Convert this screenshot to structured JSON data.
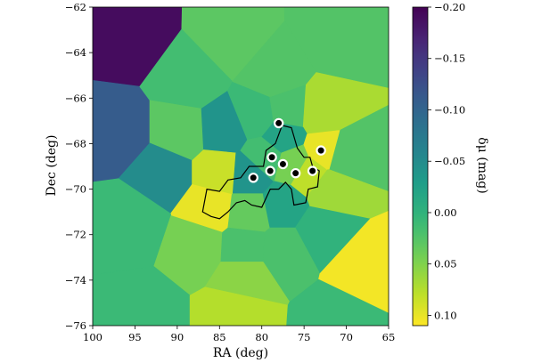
{
  "chart_data": {
    "type": "heatmap",
    "title": "",
    "xlabel": "RA (deg)",
    "ylabel": "Dec (deg)",
    "xlim": [
      100,
      65
    ],
    "ylim": [
      -76,
      -62
    ],
    "x_ticks": [
      100,
      95,
      90,
      85,
      80,
      75,
      70,
      65
    ],
    "x_tick_labels": [
      "100",
      "95",
      "90",
      "85",
      "80",
      "75",
      "70",
      "65"
    ],
    "y_ticks": [
      -76,
      -74,
      -72,
      -70,
      -68,
      -66,
      -64,
      -62
    ],
    "y_tick_labels": [
      "−76",
      "−74",
      "−72",
      "−70",
      "−68",
      "−66",
      "−64",
      "−62"
    ],
    "colorbar": {
      "label": "δμ (mag)",
      "colormap": "viridis",
      "reversed": true,
      "range": [
        -0.2,
        0.11
      ],
      "ticks": [
        -0.2,
        -0.15,
        -0.1,
        -0.05,
        0.0,
        0.05,
        0.1
      ],
      "tick_labels": [
        "−0.20",
        "−0.15",
        "−0.10",
        "−0.05",
        "0.00",
        "0.05",
        "0.10"
      ]
    },
    "cells": [
      {
        "ra": 95.5,
        "dec": -63.3,
        "value": -0.19
      },
      {
        "ra": 83.5,
        "dec": -63.4,
        "value": 0.03
      },
      {
        "ra": 71.0,
        "dec": -63.3,
        "value": 0.025
      },
      {
        "ra": 97.0,
        "dec": -67.5,
        "value": -0.11
      },
      {
        "ra": 88.5,
        "dec": -65.2,
        "value": 0.015
      },
      {
        "ra": 78.5,
        "dec": -65.0,
        "value": 0.025
      },
      {
        "ra": 89.5,
        "dec": -67.5,
        "value": 0.03
      },
      {
        "ra": 84.5,
        "dec": -67.4,
        "value": -0.04
      },
      {
        "ra": 80.5,
        "dec": -66.8,
        "value": 0.01
      },
      {
        "ra": 77.0,
        "dec": -66.6,
        "value": 0.02
      },
      {
        "ra": 73.0,
        "dec": -66.7,
        "value": 0.07
      },
      {
        "ra": 70.5,
        "dec": -68.5,
        "value": 0.025
      },
      {
        "ra": 91.5,
        "dec": -69.3,
        "value": -0.05
      },
      {
        "ra": 85.0,
        "dec": -69.3,
        "value": 0.085
      },
      {
        "ra": 81.5,
        "dec": -69.4,
        "value": -0.04
      },
      {
        "ra": 79.5,
        "dec": -68.6,
        "value": 0.015
      },
      {
        "ra": 77.5,
        "dec": -67.7,
        "value": -0.02
      },
      {
        "ra": 76.3,
        "dec": -68.9,
        "value": 0.045
      },
      {
        "ra": 74.5,
        "dec": -69.3,
        "value": 0.08
      },
      {
        "ra": 72.5,
        "dec": -68.3,
        "value": 0.1
      },
      {
        "ra": 72.0,
        "dec": -70.0,
        "value": 0.065
      },
      {
        "ra": 86.0,
        "dec": -70.8,
        "value": 0.1
      },
      {
        "ra": 81.5,
        "dec": -71.0,
        "value": 0.035
      },
      {
        "ra": 77.5,
        "dec": -70.7,
        "value": -0.02
      },
      {
        "ra": 73.0,
        "dec": -71.8,
        "value": 0.0
      },
      {
        "ra": 95.5,
        "dec": -71.5,
        "value": 0.01
      },
      {
        "ra": 87.5,
        "dec": -72.5,
        "value": 0.045
      },
      {
        "ra": 82.0,
        "dec": -72.6,
        "value": 0.02
      },
      {
        "ra": 77.5,
        "dec": -72.7,
        "value": 0.02
      },
      {
        "ra": 82.0,
        "dec": -73.8,
        "value": 0.055
      },
      {
        "ra": 68.0,
        "dec": -73.5,
        "value": 0.105
      },
      {
        "ra": 94.0,
        "dec": -75.5,
        "value": 0.01
      },
      {
        "ra": 83.0,
        "dec": -75.5,
        "value": 0.075
      },
      {
        "ra": 71.0,
        "dec": -75.8,
        "value": 0.01
      }
    ],
    "points": [
      {
        "ra": 78.0,
        "dec": -67.1
      },
      {
        "ra": 73.0,
        "dec": -68.3
      },
      {
        "ra": 78.8,
        "dec": -68.6
      },
      {
        "ra": 77.5,
        "dec": -68.9
      },
      {
        "ra": 79.0,
        "dec": -69.2
      },
      {
        "ra": 76.0,
        "dec": -69.3
      },
      {
        "ra": 74.0,
        "dec": -69.2
      },
      {
        "ra": 81.0,
        "dec": -69.5
      }
    ],
    "outline": [
      [
        87,
        -71.0
      ],
      [
        86.5,
        -70.0
      ],
      [
        85.0,
        -70.1
      ],
      [
        84.0,
        -69.6
      ],
      [
        82.5,
        -69.5
      ],
      [
        81.5,
        -69.0
      ],
      [
        79.8,
        -69.0
      ],
      [
        79.5,
        -68.3
      ],
      [
        78.4,
        -68.0
      ],
      [
        77.6,
        -67.2
      ],
      [
        76.5,
        -67.3
      ],
      [
        75.8,
        -68.2
      ],
      [
        75.0,
        -68.6
      ],
      [
        74.3,
        -68.6
      ],
      [
        74.0,
        -69.0
      ],
      [
        73.2,
        -69.2
      ],
      [
        73.4,
        -69.9
      ],
      [
        74.5,
        -70.0
      ],
      [
        74.8,
        -70.6
      ],
      [
        76.2,
        -70.7
      ],
      [
        76.5,
        -70.0
      ],
      [
        77.2,
        -69.7
      ],
      [
        78.0,
        -70.0
      ],
      [
        79.0,
        -70.0
      ],
      [
        80.0,
        -70.8
      ],
      [
        81.2,
        -70.7
      ],
      [
        82.0,
        -70.5
      ],
      [
        83.0,
        -70.6
      ],
      [
        84.0,
        -71.0
      ],
      [
        85.0,
        -71.3
      ],
      [
        86.0,
        -71.2
      ]
    ]
  }
}
